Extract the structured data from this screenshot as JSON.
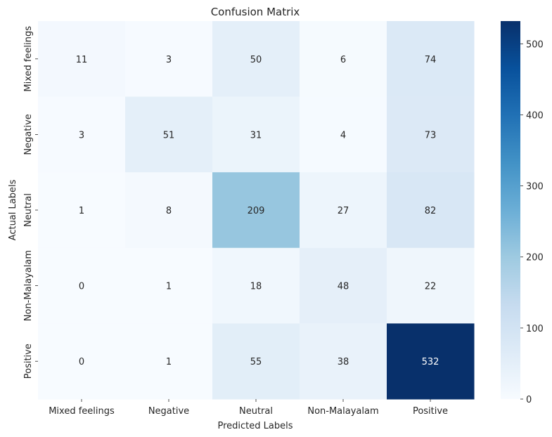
{
  "chart_data": {
    "type": "heatmap",
    "title": "Confusion Matrix",
    "xlabel": "Predicted Labels",
    "ylabel": "Actual Labels",
    "x_categories": [
      "Mixed feelings",
      "Negative",
      "Neutral",
      "Non-Malayalam",
      "Positive"
    ],
    "y_categories": [
      "Mixed feelings",
      "Negative",
      "Neutral",
      "Non-Malayalam",
      "Positive"
    ],
    "values": [
      [
        11,
        3,
        50,
        6,
        74
      ],
      [
        3,
        51,
        31,
        4,
        73
      ],
      [
        1,
        8,
        209,
        27,
        82
      ],
      [
        0,
        1,
        18,
        48,
        22
      ],
      [
        0,
        1,
        55,
        38,
        532
      ]
    ],
    "colormap": "Blues",
    "vmin": 0,
    "vmax": 532,
    "colorbar_ticks": [
      0,
      100,
      200,
      300,
      400,
      500
    ]
  }
}
